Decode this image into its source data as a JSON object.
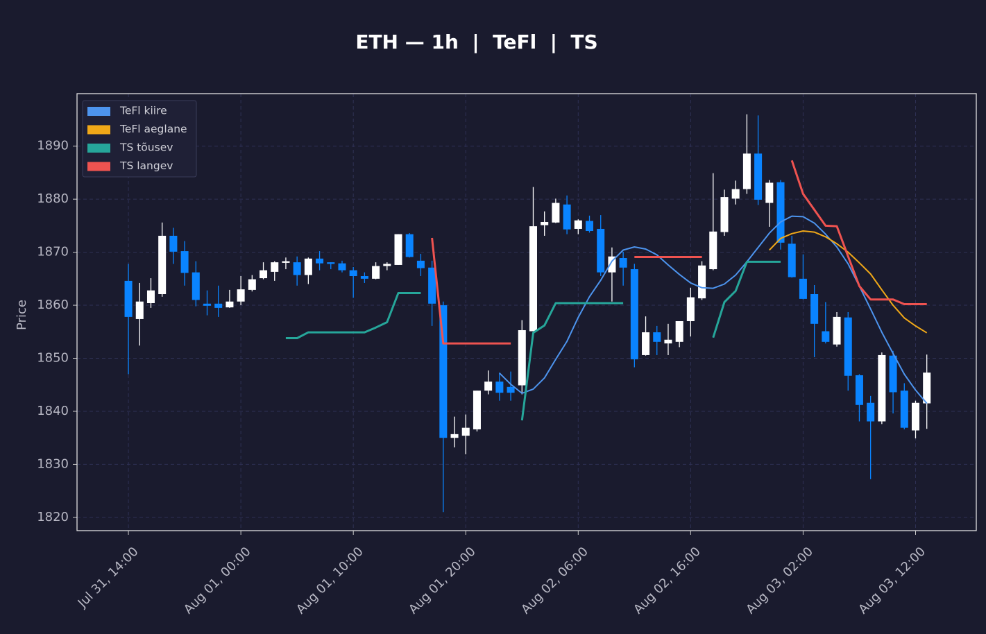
{
  "chart_data": {
    "type": "candlestick",
    "title": "ETH — 1h  |  TeFl  |  TS",
    "y_label": "Price",
    "x": [
      0,
      1,
      2,
      3,
      4,
      5,
      6,
      7,
      8,
      9,
      10,
      11,
      12,
      13,
      14,
      15,
      16,
      17,
      18,
      19,
      20,
      21,
      22,
      23,
      24,
      25,
      26,
      27,
      28,
      29,
      30,
      31,
      32,
      33,
      34,
      35,
      36,
      37,
      38,
      39,
      40,
      41,
      42,
      43,
      44,
      45,
      46,
      47,
      48,
      49,
      50,
      51,
      52,
      53,
      54,
      55,
      56,
      57,
      58,
      59,
      60,
      61,
      62,
      63,
      64,
      65,
      66,
      67,
      68,
      69,
      70,
      71
    ],
    "open": [
      1864.6,
      1857.4,
      1860.4,
      1862.1,
      1873.1,
      1870.2,
      1866.2,
      1860.3,
      1860.3,
      1859.6,
      1860.7,
      1862.9,
      1865.1,
      1866.3,
      1868.0,
      1868.1,
      1865.7,
      1868.8,
      1868.1,
      1867.9,
      1866.6,
      1865.5,
      1865.0,
      1867.4,
      1867.6,
      1873.4,
      1868.4,
      1867.1,
      1860.0,
      1835.0,
      1835.4,
      1836.6,
      1843.9,
      1845.6,
      1844.6,
      1844.9,
      1855.1,
      1875.1,
      1875.6,
      1879.0,
      1874.4,
      1875.9,
      1874.4,
      1866.2,
      1868.9,
      1866.8,
      1850.6,
      1854.9,
      1852.8,
      1853.1,
      1857.0,
      1861.3,
      1866.8,
      1873.8,
      1880.1,
      1881.9,
      1888.6,
      1879.3,
      1883.2,
      1871.6,
      1865.0,
      1862.1,
      1855.1,
      1852.6,
      1857.7,
      1846.8,
      1841.6,
      1838.1,
      1850.5,
      1843.9,
      1836.4,
      1841.5
    ],
    "high": [
      1867.8,
      1864.2,
      1865.1,
      1875.6,
      1874.6,
      1872.1,
      1868.3,
      1862.8,
      1863.7,
      1862.9,
      1865.5,
      1865.7,
      1868.1,
      1868.3,
      1869.0,
      1869.2,
      1869.0,
      1870.2,
      1868.1,
      1868.4,
      1867.2,
      1866.2,
      1868.1,
      1868.1,
      1873.4,
      1873.6,
      1869.7,
      1868.4,
      1860.7,
      1839.0,
      1839.4,
      1843.9,
      1847.7,
      1847.3,
      1847.5,
      1857.2,
      1882.3,
      1877.7,
      1880.1,
      1880.7,
      1876.2,
      1876.9,
      1877.0,
      1870.9,
      1870.1,
      1867.8,
      1857.9,
      1856.1,
      1856.5,
      1857.0,
      1863.3,
      1868.3,
      1884.9,
      1881.8,
      1883.5,
      1896.0,
      1895.8,
      1883.6,
      1883.6,
      1873.1,
      1869.6,
      1863.8,
      1860.6,
      1858.7,
      1858.7,
      1847.0,
      1842.9,
      1851.1,
      1851.4,
      1845.3,
      1842.0,
      1850.7
    ],
    "low": [
      1847.0,
      1852.4,
      1859.5,
      1861.6,
      1867.8,
      1863.7,
      1859.8,
      1858.1,
      1857.8,
      1859.5,
      1860.0,
      1862.6,
      1864.9,
      1864.6,
      1866.8,
      1863.7,
      1864.0,
      1866.6,
      1866.8,
      1866.2,
      1861.4,
      1864.2,
      1864.9,
      1866.6,
      1867.6,
      1869.0,
      1865.5,
      1856.1,
      1821.0,
      1833.2,
      1831.9,
      1836.2,
      1843.2,
      1842.0,
      1842.0,
      1843.2,
      1855.1,
      1873.1,
      1875.5,
      1873.4,
      1873.4,
      1873.7,
      1865.5,
      1860.7,
      1863.7,
      1848.3,
      1850.5,
      1850.6,
      1850.6,
      1852.1,
      1854.1,
      1861.0,
      1866.6,
      1873.1,
      1879.0,
      1881.0,
      1878.9,
      1874.8,
      1870.5,
      1865.2,
      1861.1,
      1850.2,
      1852.8,
      1852.2,
      1843.9,
      1838.1,
      1827.2,
      1837.6,
      1839.6,
      1836.6,
      1834.9,
      1836.7
    ],
    "close": [
      1857.8,
      1860.7,
      1862.8,
      1873.1,
      1870.1,
      1866.1,
      1861.0,
      1859.9,
      1859.5,
      1860.7,
      1863.0,
      1864.9,
      1866.6,
      1868.1,
      1868.3,
      1865.7,
      1868.8,
      1867.9,
      1867.8,
      1866.6,
      1865.5,
      1865.0,
      1867.4,
      1867.8,
      1873.4,
      1869.1,
      1867.0,
      1860.3,
      1835.0,
      1835.7,
      1836.9,
      1843.9,
      1845.6,
      1843.5,
      1843.5,
      1855.3,
      1874.9,
      1875.7,
      1879.3,
      1874.3,
      1876.0,
      1874.0,
      1866.2,
      1869.2,
      1867.1,
      1849.8,
      1854.9,
      1853.1,
      1853.5,
      1857.0,
      1861.5,
      1867.5,
      1873.9,
      1880.4,
      1881.9,
      1888.6,
      1879.9,
      1883.1,
      1871.8,
      1865.3,
      1861.2,
      1856.5,
      1853.1,
      1857.8,
      1846.7,
      1841.2,
      1838.1,
      1850.6,
      1843.6,
      1836.9,
      1841.6,
      1847.3
    ],
    "up_color": "#ffffff",
    "down_color": "#0a84ff",
    "series": [
      {
        "name": "TeFl kiire",
        "color": "#4d94ee",
        "width": 2,
        "values": [
          null,
          null,
          null,
          null,
          null,
          null,
          null,
          null,
          null,
          null,
          null,
          null,
          null,
          null,
          null,
          null,
          null,
          null,
          null,
          null,
          null,
          null,
          null,
          null,
          null,
          null,
          null,
          null,
          null,
          null,
          null,
          null,
          null,
          1847.2,
          1845.1,
          1843.4,
          1844.2,
          1846.3,
          1849.8,
          1853.2,
          1857.7,
          1861.6,
          1864.7,
          1868.3,
          1870.4,
          1871.0,
          1870.6,
          1869.5,
          1867.6,
          1865.8,
          1864.2,
          1863.3,
          1863.2,
          1864.0,
          1865.7,
          1868.2,
          1870.9,
          1873.6,
          1875.7,
          1876.8,
          1876.7,
          1875.5,
          1873.4,
          1871.0,
          1867.8,
          1863.6,
          1859.3,
          1854.9,
          1850.9,
          1847.0,
          1844.0,
          1841.5
        ]
      },
      {
        "name": "TeFl aeglane",
        "color": "#f0a818",
        "width": 2,
        "values": [
          null,
          null,
          null,
          null,
          null,
          null,
          null,
          null,
          null,
          null,
          null,
          null,
          null,
          null,
          null,
          null,
          null,
          null,
          null,
          null,
          null,
          null,
          null,
          null,
          null,
          null,
          null,
          null,
          null,
          null,
          null,
          null,
          null,
          null,
          null,
          null,
          null,
          null,
          null,
          null,
          null,
          null,
          null,
          null,
          null,
          null,
          null,
          null,
          null,
          null,
          null,
          null,
          null,
          null,
          null,
          null,
          null,
          1870.4,
          1872.6,
          1873.5,
          1874.0,
          1873.8,
          1872.9,
          1871.6,
          1870.0,
          1868.0,
          1865.9,
          1862.9,
          1860.0,
          1857.6,
          1856.1,
          1854.8
        ]
      },
      {
        "name": "TS tõusev",
        "color": "#26a69a",
        "width": 3,
        "values": [
          null,
          null,
          null,
          null,
          null,
          null,
          null,
          null,
          null,
          null,
          null,
          null,
          null,
          null,
          1853.8,
          1853.8,
          1854.9,
          1854.9,
          1854.9,
          1854.9,
          1854.9,
          1854.9,
          1855.8,
          1856.8,
          1862.3,
          1862.3,
          1862.3,
          null,
          null,
          null,
          null,
          null,
          null,
          null,
          null,
          1838.3,
          1854.8,
          1856.2,
          1860.4,
          1860.4,
          1860.4,
          1860.4,
          1860.4,
          1860.4,
          1860.4,
          null,
          null,
          null,
          null,
          null,
          null,
          null,
          1853.9,
          1860.6,
          1862.7,
          1868.2,
          1868.2,
          1868.2,
          1868.2,
          null,
          null,
          null,
          null,
          null,
          null,
          null,
          null,
          null,
          null,
          null,
          null,
          null
        ]
      },
      {
        "name": "TS langev",
        "color": "#ef5350",
        "width": 3,
        "values": [
          null,
          null,
          null,
          null,
          null,
          null,
          null,
          null,
          null,
          null,
          null,
          null,
          null,
          null,
          null,
          null,
          null,
          null,
          null,
          null,
          null,
          null,
          null,
          null,
          null,
          null,
          null,
          1872.7,
          1852.8,
          1852.8,
          1852.8,
          1852.8,
          1852.8,
          1852.8,
          1852.8,
          null,
          null,
          null,
          null,
          null,
          null,
          null,
          null,
          null,
          null,
          1869.1,
          1869.1,
          1869.1,
          1869.1,
          1869.1,
          1869.1,
          1869.1,
          null,
          null,
          null,
          null,
          null,
          null,
          null,
          1887.3,
          1881.0,
          1878.0,
          1875.0,
          1874.9,
          1869.2,
          1863.6,
          1861.1,
          1861.1,
          1861.1,
          1860.2,
          1860.2,
          1860.2
        ]
      }
    ],
    "xlim": [
      -4.57,
      75.4
    ],
    "ylim": [
      1817.5,
      1899.9
    ],
    "xticks": [
      {
        "value": 0,
        "label": "Jul 31, 14:00"
      },
      {
        "value": 10,
        "label": "Aug 01, 00:00"
      },
      {
        "value": 20,
        "label": "Aug 01, 10:00"
      },
      {
        "value": 30,
        "label": "Aug 01, 20:00"
      },
      {
        "value": 40,
        "label": "Aug 02, 06:00"
      },
      {
        "value": 50,
        "label": "Aug 02, 16:00"
      },
      {
        "value": 60,
        "label": "Aug 03, 02:00"
      },
      {
        "value": 70,
        "label": "Aug 03, 12:00"
      }
    ],
    "yticks": [
      1820,
      1830,
      1840,
      1850,
      1860,
      1870,
      1880,
      1890
    ],
    "grid": true,
    "legend": "upper left"
  }
}
